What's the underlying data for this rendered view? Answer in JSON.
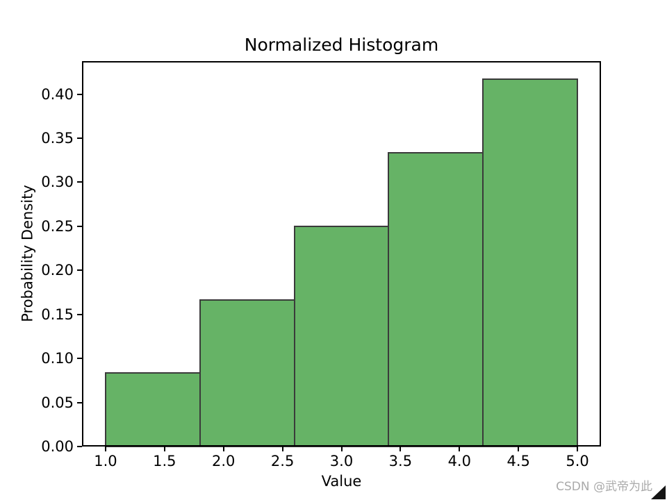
{
  "figure": {
    "watermark": "CSDN @武帝为此"
  },
  "chart_data": {
    "type": "bar",
    "subtype": "histogram",
    "title": "Normalized Histogram",
    "xlabel": "Value",
    "ylabel": "Probability Density",
    "bin_edges": [
      1.0,
      1.8,
      2.6,
      3.4,
      4.2,
      5.0
    ],
    "values": [
      0.08333,
      0.16667,
      0.25,
      0.33333,
      0.41667
    ],
    "xlim": [
      0.8,
      5.2
    ],
    "ylim": [
      0.0,
      0.4375
    ],
    "xticks": [
      1.0,
      1.5,
      2.0,
      2.5,
      3.0,
      3.5,
      4.0,
      4.5,
      5.0
    ],
    "yticks": [
      0.0,
      0.05,
      0.1,
      0.15,
      0.2,
      0.25,
      0.3,
      0.35,
      0.4
    ],
    "xtick_labels": [
      "1.0",
      "1.5",
      "2.0",
      "2.5",
      "3.0",
      "3.5",
      "4.0",
      "4.5",
      "5.0"
    ],
    "ytick_labels": [
      "0.00",
      "0.05",
      "0.10",
      "0.15",
      "0.20",
      "0.25",
      "0.30",
      "0.35",
      "0.40"
    ],
    "grid": false,
    "legend": null,
    "colors": {
      "bar_fill": "#66b366",
      "bar_edge": "#3a3a3a",
      "axis": "#000000",
      "text": "#000000",
      "watermark": "#aaaaaa"
    }
  }
}
